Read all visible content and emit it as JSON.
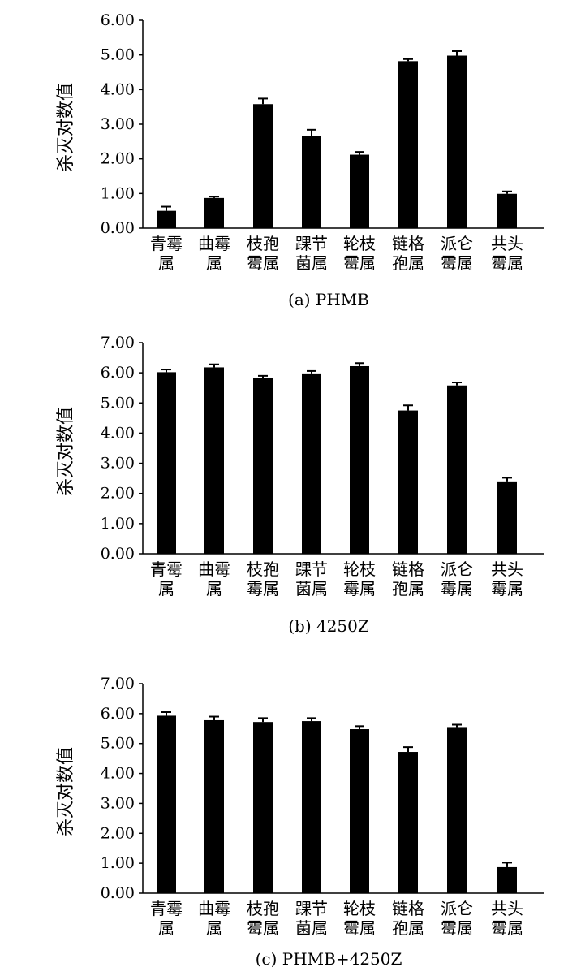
{
  "chart_data": [
    {
      "type": "bar",
      "caption": "(a) PHMB",
      "ylabel": "杀灭对数值",
      "categories": [
        [
          "青霉",
          "属"
        ],
        [
          "曲霉",
          "属"
        ],
        [
          "枝孢",
          "霉属"
        ],
        [
          "踝节",
          "菌属"
        ],
        [
          "轮枝",
          "霉属"
        ],
        [
          "链格",
          "孢属"
        ],
        [
          "派仑",
          "霉属"
        ],
        [
          "共头",
          "霉属"
        ]
      ],
      "values": [
        0.5,
        0.87,
        3.58,
        2.65,
        2.12,
        4.82,
        4.98,
        0.99
      ],
      "errors": [
        0.12,
        0.04,
        0.16,
        0.19,
        0.08,
        0.06,
        0.13,
        0.07
      ],
      "yticks": [
        "0.00",
        "1.00",
        "2.00",
        "3.00",
        "4.00",
        "5.00",
        "6.00"
      ],
      "ylim": [
        0,
        6
      ],
      "color": "#000000"
    },
    {
      "type": "bar",
      "caption": "(b) 4250Z",
      "ylabel": "杀灭对数值",
      "categories": [
        [
          "青霉",
          "属"
        ],
        [
          "曲霉",
          "属"
        ],
        [
          "枝孢",
          "霉属"
        ],
        [
          "踝节",
          "菌属"
        ],
        [
          "轮枝",
          "霉属"
        ],
        [
          "链格",
          "孢属"
        ],
        [
          "派仑",
          "霉属"
        ],
        [
          "共头",
          "霉属"
        ]
      ],
      "values": [
        6.02,
        6.18,
        5.82,
        5.98,
        6.22,
        4.75,
        5.58,
        2.4
      ],
      "errors": [
        0.09,
        0.1,
        0.08,
        0.08,
        0.1,
        0.17,
        0.1,
        0.12
      ],
      "yticks": [
        "0.00",
        "1.00",
        "2.00",
        "3.00",
        "4.00",
        "5.00",
        "6.00",
        "7.00"
      ],
      "ylim": [
        0,
        7
      ],
      "color": "#000000"
    },
    {
      "type": "bar",
      "caption": "(c) PHMB+4250Z",
      "ylabel": "杀灭对数值",
      "categories": [
        [
          "青霉",
          "属"
        ],
        [
          "曲霉",
          "属"
        ],
        [
          "枝孢",
          "霉属"
        ],
        [
          "踝节",
          "菌属"
        ],
        [
          "轮枝",
          "霉属"
        ],
        [
          "链格",
          "孢属"
        ],
        [
          "派仑",
          "霉属"
        ],
        [
          "共头",
          "霉属"
        ]
      ],
      "values": [
        5.93,
        5.78,
        5.72,
        5.75,
        5.48,
        4.72,
        5.55,
        0.87
      ],
      "errors": [
        0.12,
        0.12,
        0.13,
        0.1,
        0.1,
        0.16,
        0.08,
        0.15
      ],
      "yticks": [
        "0.00",
        "1.00",
        "2.00",
        "3.00",
        "4.00",
        "5.00",
        "6.00",
        "7.00"
      ],
      "ylim": [
        0,
        7
      ],
      "color": "#000000"
    }
  ]
}
